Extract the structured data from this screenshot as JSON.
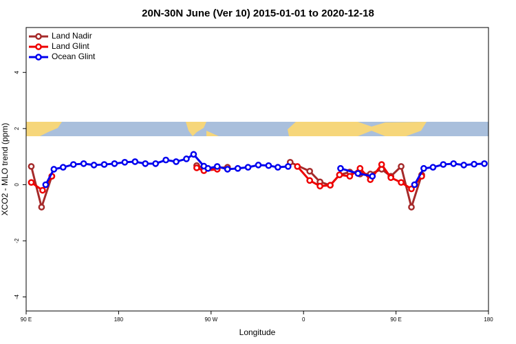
{
  "chart_data": {
    "type": "line",
    "title": "20N-30N June (Ver 10)   2015-01-01 to 2020-12-18",
    "xlabel": "Longitude",
    "ylabel": "XCO2 - MLO trend (ppm)",
    "xlim": [
      90,
      540
    ],
    "ylim": [
      -4.5,
      5.6
    ],
    "xticks": [
      {
        "value": 90,
        "label": "90 E"
      },
      180,
      {
        "value": 270,
        "label": "90 W"
      },
      {
        "value": 360,
        "label": "0"
      },
      {
        "value": 450,
        "label": "90 E"
      },
      {
        "value": 540,
        "label": "180"
      }
    ],
    "yticks": [
      -4,
      -2,
      0,
      2,
      4
    ],
    "legend": "top-left",
    "series": [
      {
        "name": "Land Nadir",
        "color": "#a52a2a",
        "x": [
          95,
          105,
          115,
          null,
          256,
          263,
          276,
          286,
          null,
          347,
          366,
          376,
          386,
          395,
          405,
          415,
          425,
          436,
          445,
          455,
          465,
          475
        ],
        "values": [
          0.65,
          -0.8,
          0.3,
          null,
          0.68,
          0.6,
          0.6,
          0.62,
          null,
          0.8,
          0.48,
          0.1,
          -0.02,
          0.35,
          0.45,
          0.38,
          0.38,
          0.55,
          0.3,
          0.65,
          -0.8,
          0.35
        ]
      },
      {
        "name": "Land Glint",
        "color": "#ee0000",
        "x": [
          95,
          106,
          115,
          null,
          256,
          263,
          276,
          null,
          354,
          366,
          376,
          386,
          395,
          405,
          415,
          425,
          436,
          445,
          455,
          465,
          475
        ],
        "values": [
          0.08,
          -0.2,
          0.3,
          null,
          0.6,
          0.5,
          0.55,
          null,
          0.65,
          0.15,
          -0.05,
          -0.02,
          0.35,
          0.3,
          0.58,
          0.18,
          0.72,
          0.25,
          0.08,
          -0.15,
          0.3
        ]
      },
      {
        "name": "Ocean Glint",
        "color": "#0000ee",
        "x": [
          109,
          117,
          126,
          136,
          146,
          156,
          166,
          176,
          186,
          196,
          206,
          216,
          226,
          236,
          246,
          253,
          263,
          267,
          276,
          286,
          296,
          306,
          316,
          326,
          335,
          345,
          null,
          396,
          413,
          427,
          null,
          468,
          477,
          486,
          496,
          506,
          516,
          526,
          536
        ],
        "values": [
          0.0,
          0.55,
          0.62,
          0.72,
          0.75,
          0.7,
          0.72,
          0.75,
          0.8,
          0.82,
          0.75,
          0.75,
          0.88,
          0.82,
          0.92,
          1.08,
          0.66,
          0.58,
          0.65,
          0.55,
          0.58,
          0.62,
          0.7,
          0.68,
          0.62,
          0.65,
          null,
          0.58,
          0.4,
          0.3,
          null,
          0.0,
          0.58,
          0.62,
          0.72,
          0.75,
          0.7,
          0.73,
          0.75
        ]
      }
    ]
  }
}
